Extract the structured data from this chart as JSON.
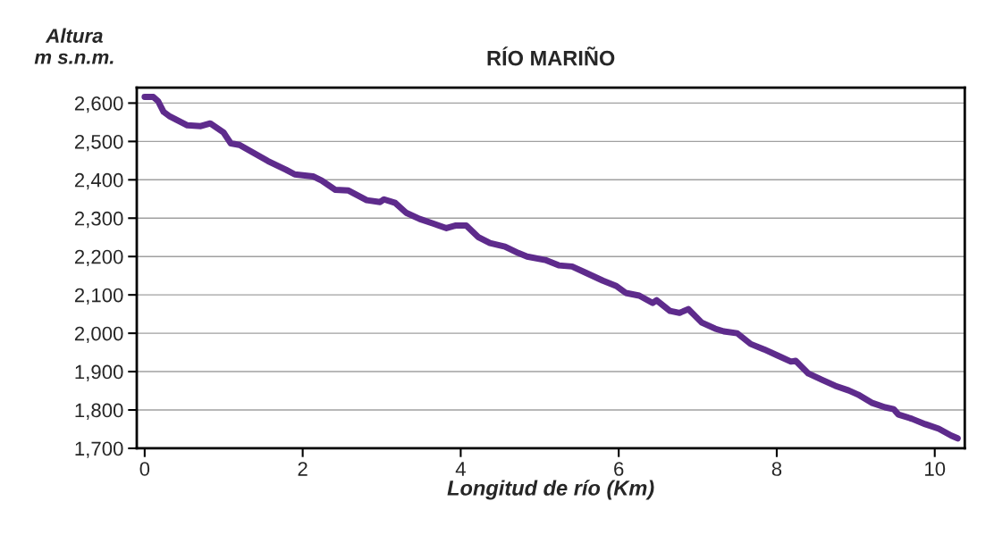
{
  "chart_data": {
    "type": "line",
    "title": "RÍO MARIÑO",
    "xlabel": "Longitud de río (Km)",
    "ylabel": "Altura\nm s.n.m.",
    "x": [
      0,
      0.11,
      0.17,
      0.24,
      0.32,
      0.54,
      0.71,
      0.83,
      1.0,
      1.09,
      1.2,
      1.56,
      1.79,
      1.9,
      2.13,
      2.24,
      2.41,
      2.58,
      2.81,
      2.98,
      3.03,
      3.17,
      3.31,
      3.48,
      3.65,
      3.82,
      3.94,
      4.07,
      4.22,
      4.37,
      4.56,
      4.73,
      4.84,
      5.07,
      5.24,
      5.41,
      5.58,
      5.8,
      5.97,
      6.09,
      6.26,
      6.43,
      6.48,
      6.65,
      6.77,
      6.88,
      7.05,
      7.22,
      7.33,
      7.5,
      7.67,
      7.84,
      8.01,
      8.18,
      8.24,
      8.4,
      8.57,
      8.74,
      8.91,
      9.03,
      9.2,
      9.37,
      9.48,
      9.54,
      9.71,
      9.88,
      10.05,
      10.21,
      10.29
    ],
    "series": [
      {
        "color": "#5e2b8c",
        "values": [
          2616,
          2616,
          2605,
          2577,
          2565,
          2542,
          2540,
          2547,
          2523,
          2495,
          2491,
          2449,
          2426,
          2414,
          2409,
          2398,
          2374,
          2372,
          2347,
          2342,
          2349,
          2340,
          2314,
          2298,
          2286,
          2274,
          2281,
          2281,
          2251,
          2235,
          2226,
          2209,
          2200,
          2191,
          2177,
          2174,
          2158,
          2137,
          2123,
          2105,
          2098,
          2079,
          2086,
          2058,
          2053,
          2063,
          2028,
          2012,
          2005,
          2000,
          1972,
          1958,
          1942,
          1926,
          1928,
          1895,
          1879,
          1863,
          1851,
          1840,
          1819,
          1807,
          1802,
          1788,
          1777,
          1763,
          1751,
          1733,
          1726
        ]
      }
    ],
    "xlim": [
      -0.1,
      10.38
    ],
    "ylim": [
      1700,
      2640
    ],
    "xticks": [
      0,
      2,
      4,
      6,
      8,
      10
    ],
    "yticks": [
      {
        "value": 1700,
        "label": "1,700"
      },
      {
        "value": 1800,
        "label": "1,800"
      },
      {
        "value": 1900,
        "label": "1,900"
      },
      {
        "value": 2000,
        "label": "2,000"
      },
      {
        "value": 2100,
        "label": "2,100"
      },
      {
        "value": 2200,
        "label": "2,200"
      },
      {
        "value": 2300,
        "label": "2,300"
      },
      {
        "value": 2400,
        "label": "2,400"
      },
      {
        "value": 2500,
        "label": "2,500"
      },
      {
        "value": 2600,
        "label": "2,600"
      }
    ],
    "grid": "y",
    "marker": "none",
    "line_style": "solid"
  }
}
